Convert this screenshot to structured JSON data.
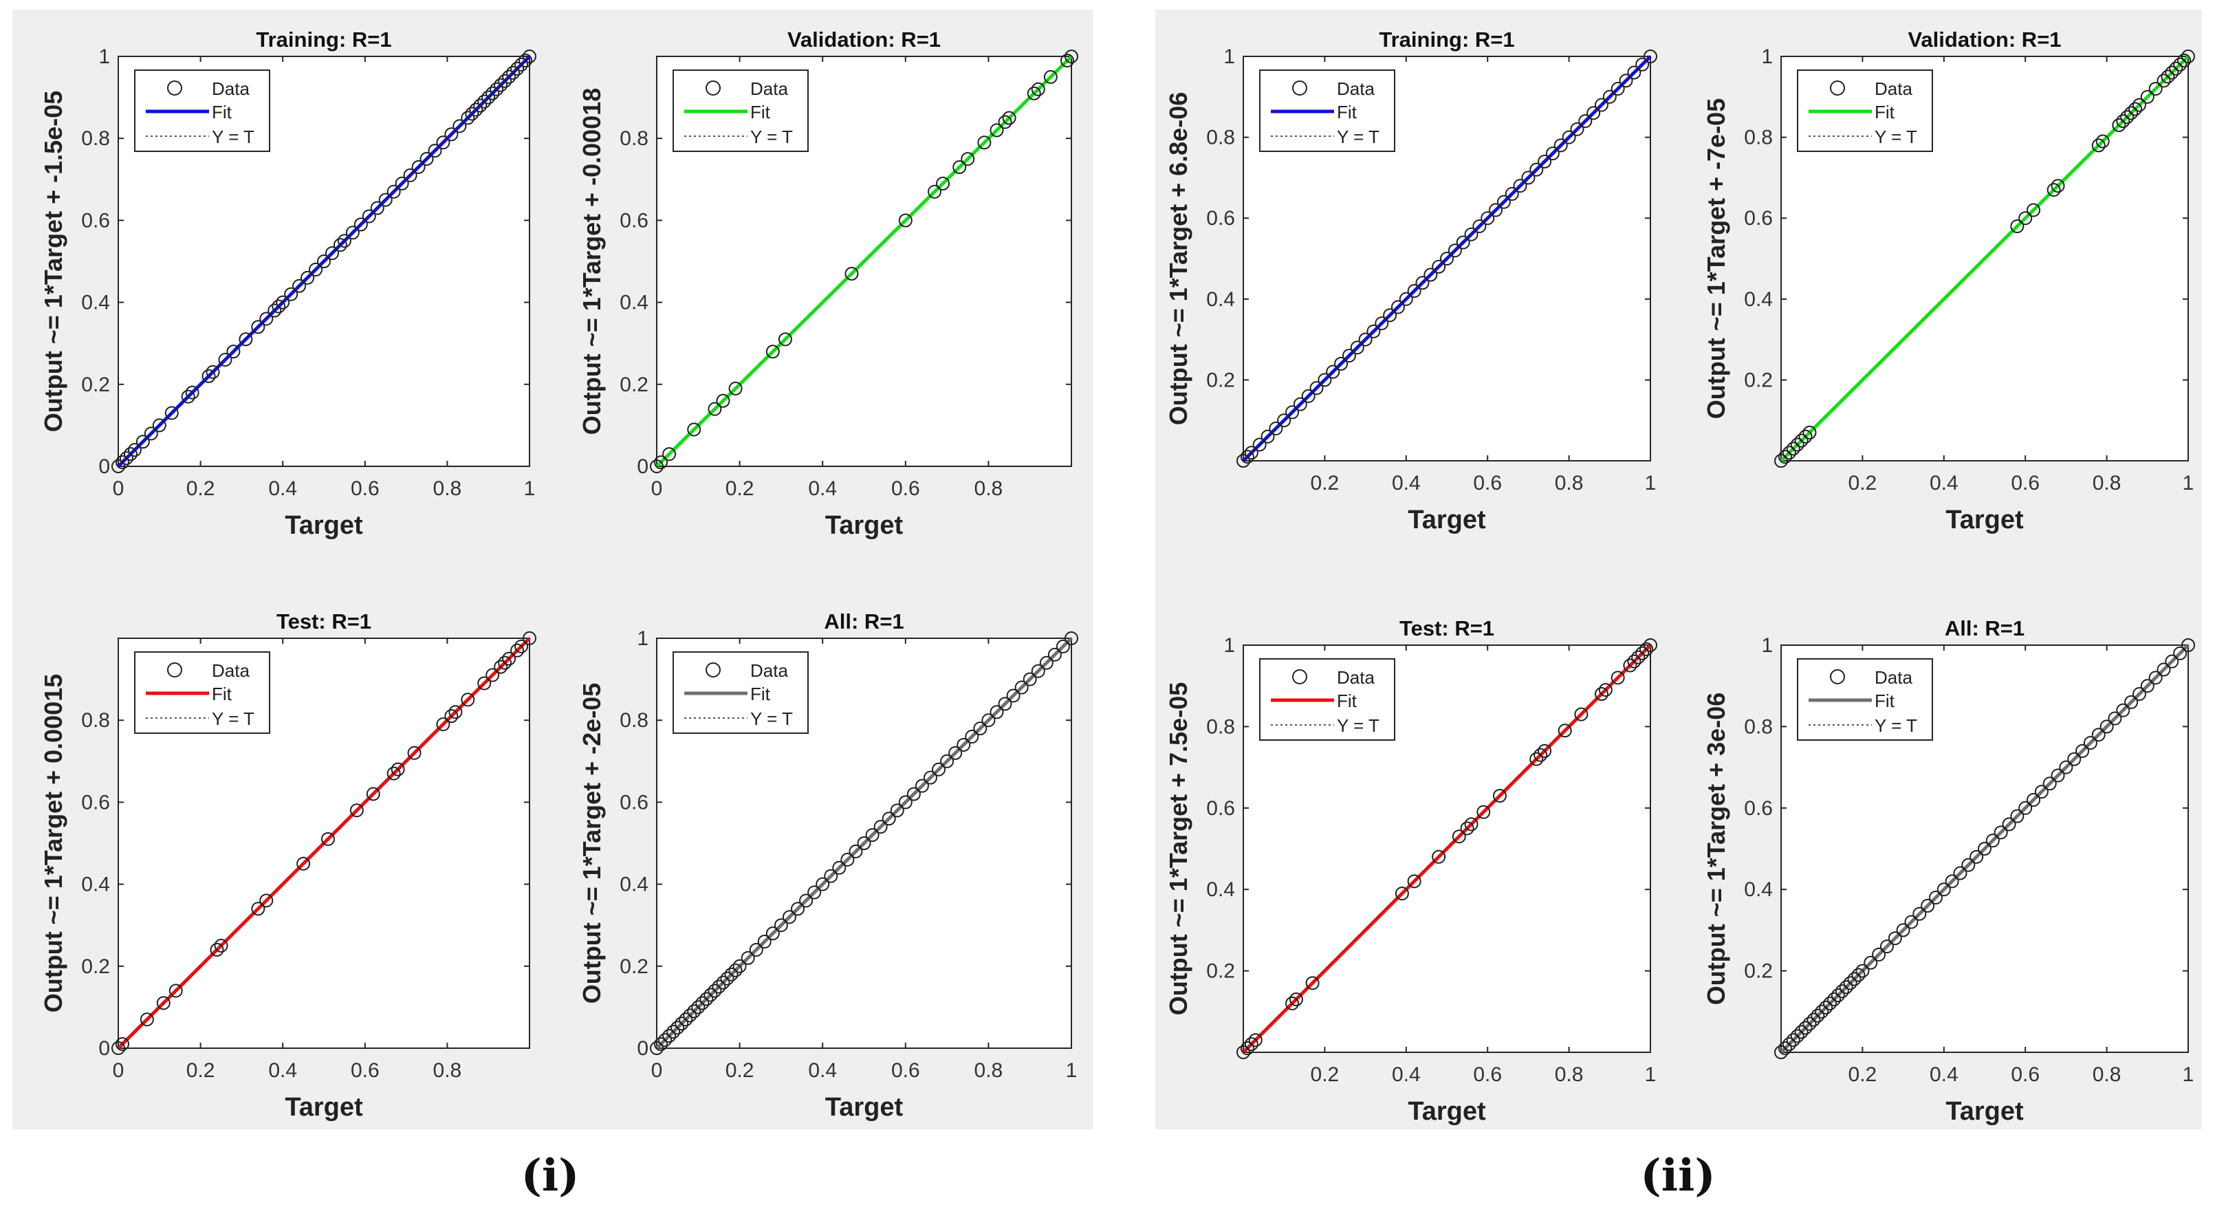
{
  "figure": {
    "panel_labels": [
      "(i)",
      "(ii)"
    ],
    "legend_labels": {
      "data": "Data",
      "fit": "Fit",
      "yt": "Y = T"
    },
    "colors": {
      "training": "#1010e0",
      "validation": "#10e010",
      "test": "#e81010",
      "all": "#707070",
      "marker": "#222222",
      "background": "#efefef"
    }
  },
  "chart_data": [
    {
      "type": "scatter",
      "panel": "(i)",
      "title": "Training: R=1",
      "xlabel": "Target",
      "ylabel": "Output ~= 1*Target + -1.5e-05",
      "fit_color": "#1010e0",
      "xlim": [
        0,
        1
      ],
      "ylim": [
        0,
        1
      ],
      "xticks": [
        0,
        0.2,
        0.4,
        0.6,
        0.8,
        1
      ],
      "yticks": [
        0,
        0.2,
        0.4,
        0.6,
        0.8,
        1
      ],
      "fit": {
        "slope": 1,
        "intercept": -1.5e-05
      },
      "legend": [
        "Data",
        "Fit",
        "Y = T"
      ],
      "points": [
        0,
        0.01,
        0.02,
        0.03,
        0.04,
        0.06,
        0.08,
        0.1,
        0.13,
        0.17,
        0.18,
        0.22,
        0.23,
        0.26,
        0.28,
        0.31,
        0.34,
        0.36,
        0.38,
        0.39,
        0.4,
        0.42,
        0.44,
        0.46,
        0.48,
        0.5,
        0.52,
        0.54,
        0.55,
        0.57,
        0.59,
        0.61,
        0.63,
        0.65,
        0.67,
        0.69,
        0.71,
        0.73,
        0.75,
        0.77,
        0.79,
        0.81,
        0.83,
        0.85,
        0.86,
        0.87,
        0.88,
        0.89,
        0.9,
        0.91,
        0.92,
        0.93,
        0.94,
        0.95,
        0.96,
        0.97,
        0.98,
        0.99,
        1
      ]
    },
    {
      "type": "scatter",
      "panel": "(i)",
      "title": "Validation: R=1",
      "xlabel": "Target",
      "ylabel": "Output ~= 1*Target + -0.00018",
      "fit_color": "#10e010",
      "xlim": [
        0,
        1
      ],
      "ylim": [
        0,
        1
      ],
      "xticks": [
        0,
        0.2,
        0.4,
        0.6,
        0.8
      ],
      "yticks": [
        0,
        0.2,
        0.4,
        0.6,
        0.8
      ],
      "fit": {
        "slope": 1,
        "intercept": -0.00018
      },
      "legend": [
        "Data",
        "Fit",
        "Y = T"
      ],
      "points": [
        0,
        0.01,
        0.03,
        0.09,
        0.14,
        0.16,
        0.19,
        0.28,
        0.31,
        0.47,
        0.6,
        0.67,
        0.69,
        0.73,
        0.75,
        0.79,
        0.82,
        0.84,
        0.85,
        0.91,
        0.92,
        0.95,
        0.99,
        1
      ]
    },
    {
      "type": "scatter",
      "panel": "(i)",
      "title": "Test: R=1",
      "xlabel": "Target",
      "ylabel": "Output ~= 1*Target + 0.00015",
      "fit_color": "#e81010",
      "xlim": [
        0,
        1
      ],
      "ylim": [
        0,
        1
      ],
      "xticks": [
        0,
        0.2,
        0.4,
        0.6,
        0.8
      ],
      "yticks": [
        0,
        0.2,
        0.4,
        0.6,
        0.8
      ],
      "fit": {
        "slope": 1,
        "intercept": 0.00015
      },
      "legend": [
        "Data",
        "Fit",
        "Y = T"
      ],
      "points": [
        0,
        0.01,
        0.07,
        0.11,
        0.14,
        0.24,
        0.25,
        0.34,
        0.36,
        0.45,
        0.51,
        0.58,
        0.62,
        0.67,
        0.68,
        0.72,
        0.79,
        0.81,
        0.82,
        0.85,
        0.89,
        0.91,
        0.93,
        0.94,
        0.95,
        0.97,
        0.98,
        1
      ]
    },
    {
      "type": "scatter",
      "panel": "(i)",
      "title": "All: R=1",
      "xlabel": "Target",
      "ylabel": "Output ~= 1*Target + -2e-05",
      "fit_color": "#707070",
      "xlim": [
        0,
        1
      ],
      "ylim": [
        0,
        1
      ],
      "xticks": [
        0,
        0.2,
        0.4,
        0.6,
        0.8,
        1
      ],
      "yticks": [
        0,
        0.2,
        0.4,
        0.6,
        0.8,
        1
      ],
      "fit": {
        "slope": 1,
        "intercept": -2e-05
      },
      "legend": [
        "Data",
        "Fit",
        "Y = T"
      ],
      "points": [
        0,
        0.01,
        0.02,
        0.03,
        0.04,
        0.05,
        0.06,
        0.07,
        0.08,
        0.09,
        0.1,
        0.11,
        0.12,
        0.13,
        0.14,
        0.15,
        0.16,
        0.17,
        0.18,
        0.19,
        0.2,
        0.22,
        0.24,
        0.26,
        0.28,
        0.3,
        0.32,
        0.34,
        0.36,
        0.38,
        0.4,
        0.42,
        0.44,
        0.46,
        0.48,
        0.5,
        0.52,
        0.54,
        0.56,
        0.58,
        0.6,
        0.62,
        0.64,
        0.66,
        0.68,
        0.7,
        0.72,
        0.74,
        0.76,
        0.78,
        0.8,
        0.82,
        0.84,
        0.86,
        0.88,
        0.9,
        0.92,
        0.94,
        0.96,
        0.98,
        1
      ]
    },
    {
      "type": "scatter",
      "panel": "(ii)",
      "title": "Training: R=1",
      "xlabel": "Target",
      "ylabel": "Output ~= 1*Target + 6.8e-06",
      "fit_color": "#1010e0",
      "xlim": [
        0,
        1
      ],
      "ylim": [
        0,
        1
      ],
      "xticks": [
        0.2,
        0.4,
        0.6,
        0.8,
        1
      ],
      "yticks": [
        0.2,
        0.4,
        0.6,
        0.8,
        1
      ],
      "fit": {
        "slope": 1,
        "intercept": 6.8e-06
      },
      "legend": [
        "Data",
        "Fit",
        "Y = T"
      ],
      "points": [
        0,
        0.01,
        0.02,
        0.04,
        0.06,
        0.08,
        0.1,
        0.12,
        0.14,
        0.16,
        0.18,
        0.2,
        0.22,
        0.24,
        0.26,
        0.28,
        0.3,
        0.32,
        0.34,
        0.36,
        0.38,
        0.4,
        0.42,
        0.44,
        0.46,
        0.48,
        0.5,
        0.52,
        0.54,
        0.56,
        0.58,
        0.6,
        0.62,
        0.64,
        0.66,
        0.68,
        0.7,
        0.72,
        0.74,
        0.76,
        0.78,
        0.8,
        0.82,
        0.84,
        0.86,
        0.88,
        0.9,
        0.92,
        0.94,
        0.96,
        0.98,
        1
      ]
    },
    {
      "type": "scatter",
      "panel": "(ii)",
      "title": "Validation: R=1",
      "xlabel": "Target",
      "ylabel": "Output ~= 1*Target + -7e-05",
      "fit_color": "#10e010",
      "xlim": [
        0,
        1
      ],
      "ylim": [
        0,
        1
      ],
      "xticks": [
        0.2,
        0.4,
        0.6,
        0.8,
        1
      ],
      "yticks": [
        0.2,
        0.4,
        0.6,
        0.8,
        1
      ],
      "fit": {
        "slope": 1,
        "intercept": -7e-05
      },
      "legend": [
        "Data",
        "Fit",
        "Y = T"
      ],
      "points": [
        0,
        0.01,
        0.02,
        0.03,
        0.04,
        0.05,
        0.06,
        0.07,
        0.58,
        0.6,
        0.62,
        0.67,
        0.68,
        0.78,
        0.79,
        0.83,
        0.84,
        0.85,
        0.86,
        0.87,
        0.88,
        0.9,
        0.92,
        0.94,
        0.95,
        0.96,
        0.97,
        0.98,
        0.99,
        1
      ]
    },
    {
      "type": "scatter",
      "panel": "(ii)",
      "title": "Test: R=1",
      "xlabel": "Target",
      "ylabel": "Output ~= 1*Target + 7.5e-05",
      "fit_color": "#e81010",
      "xlim": [
        0,
        1
      ],
      "ylim": [
        0,
        1
      ],
      "xticks": [
        0.2,
        0.4,
        0.6,
        0.8,
        1
      ],
      "yticks": [
        0.2,
        0.4,
        0.6,
        0.8,
        1
      ],
      "fit": {
        "slope": 1,
        "intercept": 7.5e-05
      },
      "legend": [
        "Data",
        "Fit",
        "Y = T"
      ],
      "points": [
        0,
        0.01,
        0.02,
        0.03,
        0.12,
        0.13,
        0.17,
        0.39,
        0.42,
        0.48,
        0.53,
        0.55,
        0.56,
        0.59,
        0.63,
        0.72,
        0.73,
        0.74,
        0.79,
        0.83,
        0.88,
        0.89,
        0.92,
        0.95,
        0.96,
        0.97,
        0.98,
        0.99,
        1
      ]
    },
    {
      "type": "scatter",
      "panel": "(ii)",
      "title": "All: R=1",
      "xlabel": "Target",
      "ylabel": "Output ~= 1*Target + 3e-06",
      "fit_color": "#707070",
      "xlim": [
        0,
        1
      ],
      "ylim": [
        0,
        1
      ],
      "xticks": [
        0.2,
        0.4,
        0.6,
        0.8,
        1
      ],
      "yticks": [
        0.2,
        0.4,
        0.6,
        0.8,
        1
      ],
      "fit": {
        "slope": 1,
        "intercept": 3e-06
      },
      "legend": [
        "Data",
        "Fit",
        "Y = T"
      ],
      "points": [
        0,
        0.01,
        0.02,
        0.03,
        0.04,
        0.05,
        0.06,
        0.07,
        0.08,
        0.09,
        0.1,
        0.11,
        0.12,
        0.13,
        0.14,
        0.15,
        0.16,
        0.17,
        0.18,
        0.19,
        0.2,
        0.22,
        0.24,
        0.26,
        0.28,
        0.3,
        0.32,
        0.34,
        0.36,
        0.38,
        0.4,
        0.42,
        0.44,
        0.46,
        0.48,
        0.5,
        0.52,
        0.54,
        0.56,
        0.58,
        0.6,
        0.62,
        0.64,
        0.66,
        0.68,
        0.7,
        0.72,
        0.74,
        0.76,
        0.78,
        0.8,
        0.82,
        0.84,
        0.86,
        0.88,
        0.9,
        0.92,
        0.94,
        0.96,
        0.98,
        1
      ]
    }
  ]
}
